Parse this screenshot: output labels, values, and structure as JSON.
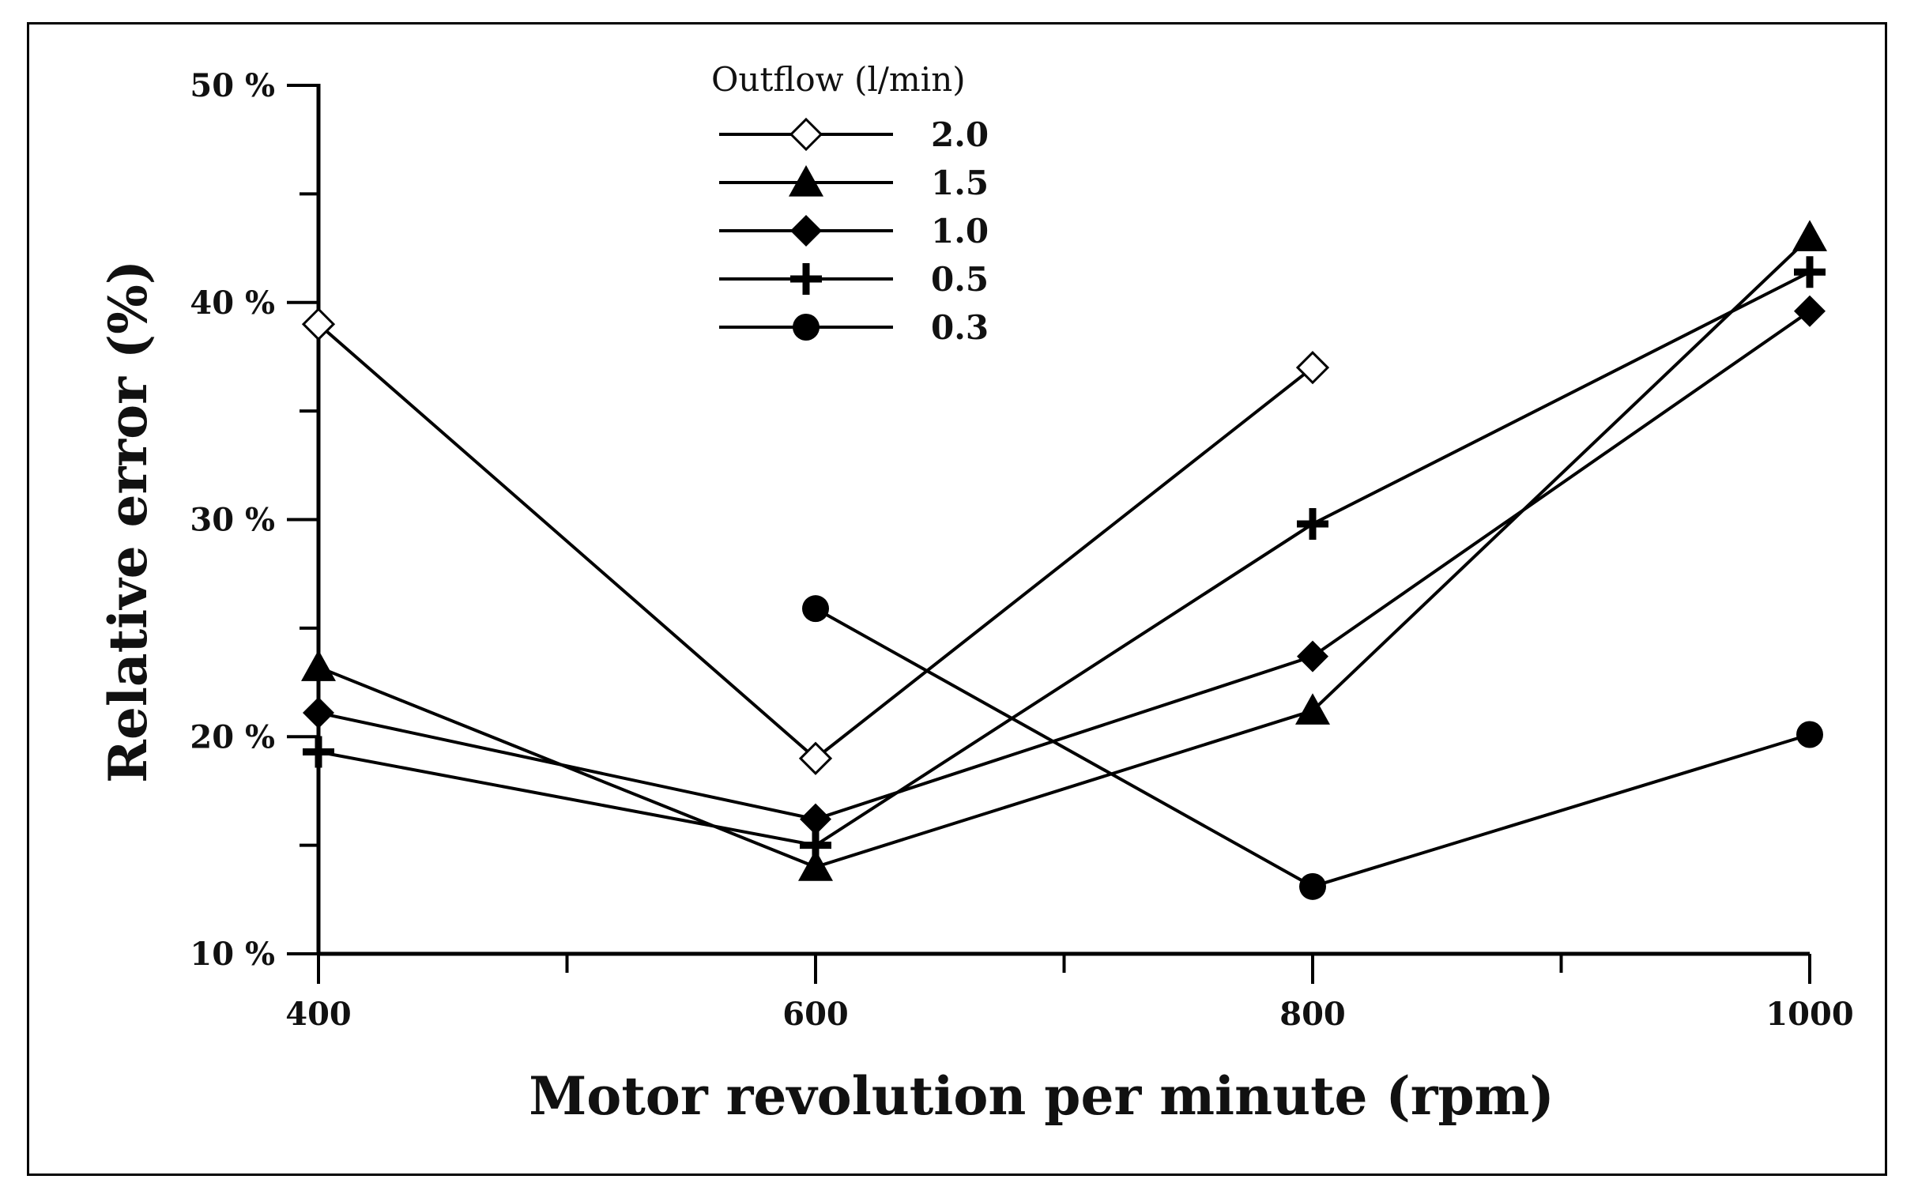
{
  "chart_data": {
    "type": "line",
    "title": "",
    "xlabel": "Motor revolution per minute (rpm)",
    "ylabel": "Relative error (%)",
    "x": [
      400,
      600,
      800,
      1000
    ],
    "xticks": [
      "400",
      "600",
      "800",
      "1000"
    ],
    "yticks": [
      "10 %",
      "20 %",
      "30 %",
      "40 %",
      "50 %"
    ],
    "ytick_values": [
      10,
      20,
      30,
      40,
      50
    ],
    "xlim": [
      400,
      1000
    ],
    "ylim": [
      10,
      50
    ],
    "legend": {
      "title": "Outflow (l/min)",
      "position": "top-center"
    },
    "series": [
      {
        "name": "2.0",
        "marker": "open-diamond",
        "points": [
          [
            400,
            39.0
          ],
          [
            600,
            19.0
          ],
          [
            800,
            37.0
          ]
        ]
      },
      {
        "name": "1.5",
        "marker": "filled-triangle",
        "points": [
          [
            400,
            23.2
          ],
          [
            600,
            14.0
          ],
          [
            800,
            21.2
          ],
          [
            1000,
            43.0
          ]
        ]
      },
      {
        "name": "1.0",
        "marker": "filled-diamond",
        "points": [
          [
            400,
            21.1
          ],
          [
            600,
            16.2
          ],
          [
            800,
            23.7
          ],
          [
            1000,
            39.6
          ]
        ]
      },
      {
        "name": "0.5",
        "marker": "plus",
        "points": [
          [
            400,
            19.3
          ],
          [
            600,
            15.0
          ],
          [
            800,
            29.8
          ],
          [
            1000,
            41.4
          ]
        ]
      },
      {
        "name": "0.3",
        "marker": "filled-circle",
        "points": [
          [
            600,
            25.9
          ],
          [
            800,
            13.1
          ],
          [
            1000,
            20.1
          ]
        ]
      }
    ]
  }
}
